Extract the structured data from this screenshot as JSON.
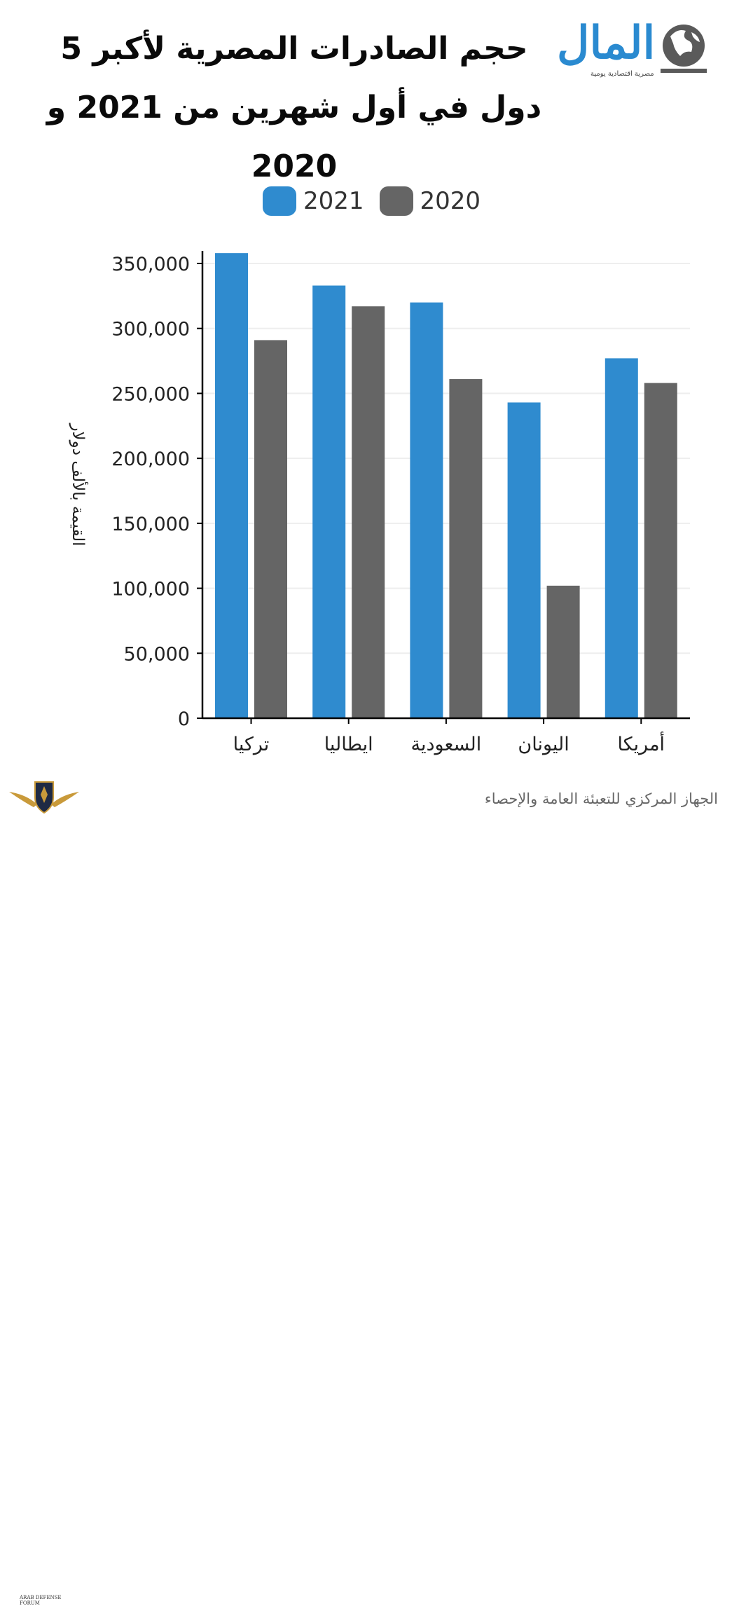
{
  "title": "حجم الصادرات المصرية لأكبر 5 دول في أول شهرين من 2021 و 2020",
  "logo": {
    "text": "المال",
    "subtitle": "مصرية اقتصادية يومية",
    "icon": "globe-icon"
  },
  "source": "الجهاز المركزي للتعبئة العامة والإحصاء",
  "forum_logo": {
    "text": "ARAB DEFENSE FORUM",
    "icon": "winged-shield-icon"
  },
  "colors": {
    "series_2021": "#2f8bcf",
    "series_2020": "#656565",
    "axis": "#000000",
    "grid": "#eeeeee"
  },
  "chart_data": {
    "type": "bar",
    "ylabel": "القيمة بالألف دولار",
    "xlabel": "",
    "ylim": [
      0,
      360000
    ],
    "yticks": [
      0,
      50000,
      100000,
      150000,
      200000,
      250000,
      300000,
      350000
    ],
    "ytick_labels": [
      "0",
      "50,000",
      "100,000",
      "150,000",
      "200,000",
      "250,000",
      "300,000",
      "350,000"
    ],
    "categories": [
      "تركيا",
      "ايطاليا",
      "السعودية",
      "اليونان",
      "أمريكا"
    ],
    "series": [
      {
        "name": "2021",
        "values": [
          358000,
          333000,
          320000,
          243000,
          277000
        ]
      },
      {
        "name": "2020",
        "values": [
          291000,
          317000,
          261000,
          102000,
          258000
        ]
      }
    ],
    "grid": true,
    "legend": "top-center"
  }
}
